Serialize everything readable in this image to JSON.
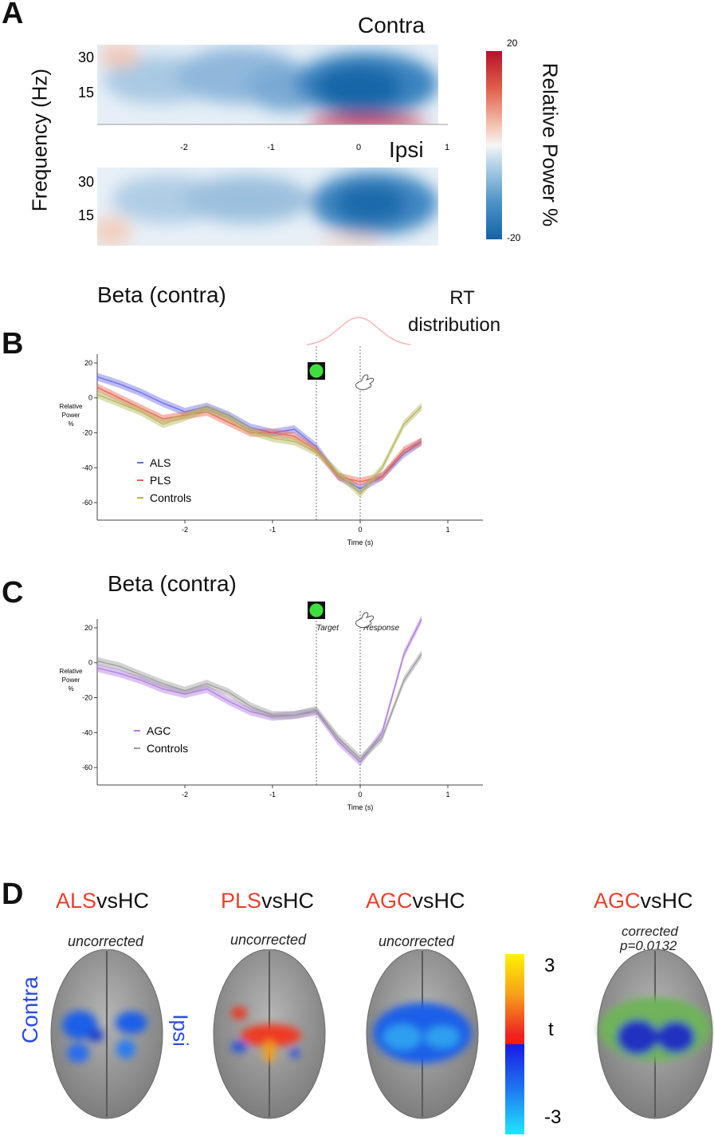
{
  "panelA": {
    "letter": "A",
    "contra_title": "Contra",
    "ipsi_title": "Ipsi",
    "ylabel": "Frequency (Hz)",
    "yticks": [
      "30",
      "15"
    ],
    "xticks": [
      "-2",
      "-1",
      "0",
      "1"
    ],
    "colorbar": {
      "label": "Relative Power %",
      "max": "20",
      "min": "-20",
      "low_color": "#1a6fb0",
      "mid_color": "#f4f4f4",
      "high_color": "#c4142b"
    }
  },
  "panelB": {
    "letter": "B",
    "title": "Beta (contra)",
    "rt_label_1": "RT",
    "rt_label_2": "distribution",
    "ylabel": "Relative Power %",
    "xlabel": "Time (s)",
    "legend": [
      "ALS",
      "PLS",
      "Controls"
    ]
  },
  "panelC": {
    "letter": "C",
    "title": "Beta (contra)",
    "target_label": "Target",
    "response_label": "Response",
    "ylabel": "Relative Power %",
    "xlabel": "Time (s)",
    "legend": [
      "AGC",
      "Controls"
    ]
  },
  "panelD": {
    "letter": "D",
    "side_left": "Contra",
    "side_right": "Ipsi",
    "comparisons": [
      {
        "group": "ALS",
        "suffix": "vsHC",
        "note": "uncorrected"
      },
      {
        "group": "PLS",
        "suffix": "vsHC",
        "note": "uncorrected"
      },
      {
        "group": "AGC",
        "suffix": "vsHC",
        "note": "uncorrected"
      },
      {
        "group": "AGC",
        "suffix": "vsHC",
        "note": "corrected",
        "note2": "p=0.0132"
      }
    ],
    "tbar": {
      "max": "3",
      "label": "t",
      "min": "-3"
    }
  },
  "chart_data": [
    {
      "type": "line",
      "title": "Beta (contra)",
      "xlabel": "Time (s)",
      "ylabel": "Relative Power %",
      "xlim": [
        -3,
        1.4
      ],
      "ylim": [
        -70,
        25
      ],
      "xticks": [
        -2,
        -1,
        0,
        1
      ],
      "yticks": [
        20,
        0,
        -20,
        -40,
        -60
      ],
      "x": [
        -3.0,
        -2.75,
        -2.5,
        -2.25,
        -2.0,
        -1.75,
        -1.5,
        -1.25,
        -1.0,
        -0.75,
        -0.5,
        -0.25,
        0.0,
        0.25,
        0.5,
        0.7
      ],
      "series": [
        {
          "name": "ALS",
          "color": "#6a6ae6",
          "values": [
            12,
            8,
            3,
            -3,
            -8,
            -5,
            -10,
            -17,
            -20,
            -18,
            -28,
            -45,
            -52,
            -45,
            -32,
            -25
          ]
        },
        {
          "name": "PLS",
          "color": "#e9634f",
          "values": [
            6,
            0,
            -6,
            -12,
            -10,
            -8,
            -14,
            -20,
            -20,
            -22,
            -30,
            -45,
            -48,
            -45,
            -30,
            -25
          ]
        },
        {
          "name": "Controls",
          "color": "#b5b55a",
          "values": [
            2,
            -3,
            -8,
            -15,
            -11,
            -6,
            -11,
            -19,
            -23,
            -25,
            -31,
            -43,
            -55,
            -40,
            -15,
            -5
          ]
        }
      ]
    },
    {
      "type": "line",
      "title": "Beta (contra)",
      "xlabel": "Time (s)",
      "ylabel": "Relative Power %",
      "xlim": [
        -3,
        1.4
      ],
      "ylim": [
        -70,
        25
      ],
      "xticks": [
        -2,
        -1,
        0,
        1
      ],
      "yticks": [
        20,
        0,
        -20,
        -40,
        -60
      ],
      "x": [
        -3.0,
        -2.75,
        -2.5,
        -2.25,
        -2.0,
        -1.75,
        -1.5,
        -1.25,
        -1.0,
        -0.75,
        -0.5,
        -0.25,
        0.0,
        0.25,
        0.5,
        0.7
      ],
      "series": [
        {
          "name": "AGC",
          "color": "#b07be0",
          "values": [
            -3,
            -6,
            -10,
            -15,
            -18,
            -15,
            -22,
            -28,
            -31,
            -30,
            -28,
            -45,
            -57,
            -40,
            5,
            25
          ]
        },
        {
          "name": "Controls",
          "color": "#9c9c9c",
          "values": [
            1,
            -2,
            -7,
            -12,
            -16,
            -12,
            -17,
            -25,
            -30,
            -30,
            -27,
            -43,
            -55,
            -43,
            -10,
            5
          ]
        }
      ]
    }
  ]
}
